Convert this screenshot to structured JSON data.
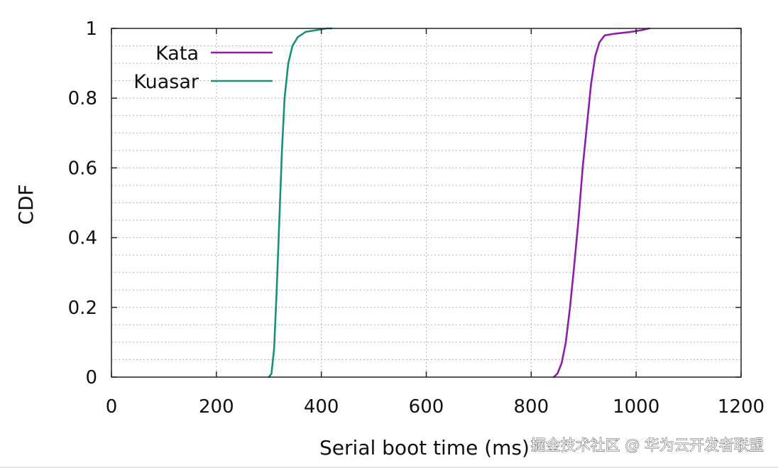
{
  "watermark": "掘金技术社区 @ 华为云开发者联盟",
  "chart_data": {
    "type": "line",
    "title": "",
    "xlabel": "Serial boot time (ms)",
    "ylabel": "CDF",
    "xlim": [
      0,
      1200
    ],
    "ylim": [
      0,
      1
    ],
    "xticks": [
      0,
      200,
      400,
      600,
      800,
      1000,
      1200
    ],
    "yticks": [
      0,
      0.2,
      0.4,
      0.6,
      0.8,
      1
    ],
    "ytick_labels": [
      "0",
      "0.2",
      "0.4",
      "0.6",
      "0.8",
      "1"
    ],
    "grid": true,
    "legend_position": "top-left",
    "series": [
      {
        "name": "Kata",
        "color": "#8b1fa8",
        "points": [
          [
            843,
            0
          ],
          [
            850,
            0.01
          ],
          [
            858,
            0.04
          ],
          [
            866,
            0.1
          ],
          [
            874,
            0.2
          ],
          [
            882,
            0.32
          ],
          [
            890,
            0.45
          ],
          [
            898,
            0.6
          ],
          [
            906,
            0.72
          ],
          [
            914,
            0.84
          ],
          [
            922,
            0.92
          ],
          [
            930,
            0.96
          ],
          [
            940,
            0.98
          ],
          [
            960,
            0.985
          ],
          [
            990,
            0.99
          ],
          [
            1010,
            0.995
          ],
          [
            1025,
            1.0
          ]
        ]
      },
      {
        "name": "Kuasar",
        "color": "#1a8f79",
        "points": [
          [
            300,
            0
          ],
          [
            305,
            0.01
          ],
          [
            310,
            0.08
          ],
          [
            315,
            0.25
          ],
          [
            320,
            0.45
          ],
          [
            325,
            0.65
          ],
          [
            330,
            0.8
          ],
          [
            337,
            0.9
          ],
          [
            345,
            0.95
          ],
          [
            355,
            0.975
          ],
          [
            370,
            0.99
          ],
          [
            390,
            0.995
          ],
          [
            410,
            1.0
          ],
          [
            420,
            1.0
          ]
        ]
      }
    ]
  }
}
